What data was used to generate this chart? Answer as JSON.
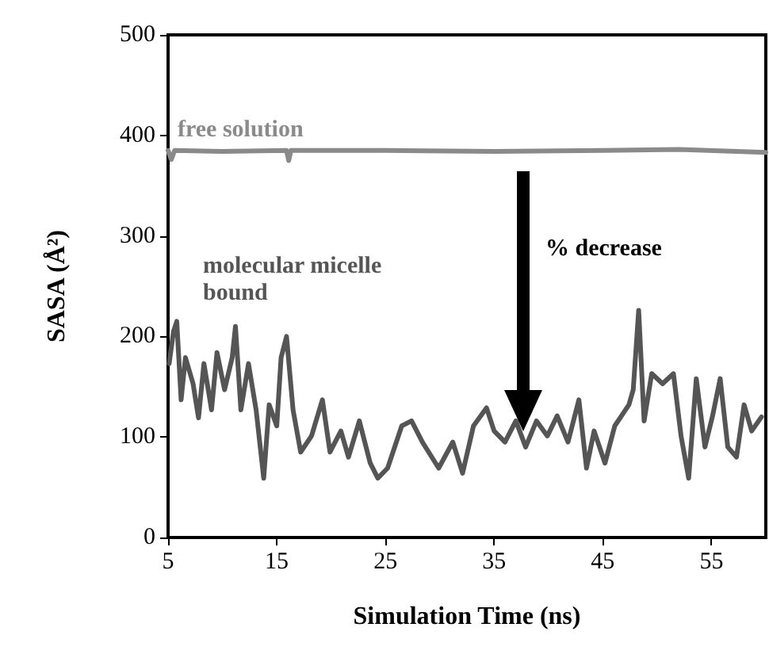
{
  "chart_data": {
    "type": "line",
    "xlabel": "Simulation Time (ns)",
    "ylabel": "SASA (Å²)",
    "xlim": [
      5,
      60
    ],
    "xticks": [
      5,
      15,
      25,
      35,
      45,
      55
    ],
    "ylim": [
      0,
      500
    ],
    "yticks": [
      0,
      100,
      200,
      300,
      400,
      500
    ],
    "grid": false,
    "legend": false,
    "marker": "none",
    "line_style": "solid",
    "annotations": [
      "% decrease"
    ],
    "series": [
      {
        "name": "free solution",
        "color": "#8a8a8a",
        "x": [
          5,
          5.3,
          5.6,
          10,
          15.9,
          16.1,
          16.3,
          25,
          35,
          45,
          52,
          60
        ],
        "values": [
          385,
          376,
          385,
          384,
          385,
          375,
          385,
          385,
          384,
          385,
          386,
          383
        ]
      },
      {
        "name": "molecular micelle bound",
        "color": "#555555",
        "x": [
          5.1,
          5.5,
          5.8,
          6.2,
          6.6,
          7.3,
          7.8,
          8.3,
          9.0,
          9.5,
          10.2,
          10.9,
          11.2,
          11.7,
          12.4,
          13.1,
          13.8,
          14.3,
          15.0,
          15.4,
          15.9,
          16.5,
          17.2,
          18.2,
          19.2,
          19.9,
          20.9,
          21.6,
          22.6,
          23.6,
          24.3,
          25.2,
          26.5,
          27.4,
          28.4,
          29.9,
          31.2,
          32.1,
          33.1,
          34.3,
          35.0,
          36.0,
          37.0,
          37.9,
          38.9,
          39.9,
          40.8,
          41.8,
          42.8,
          43.5,
          44.2,
          45.2,
          46.1,
          47.4,
          47.8,
          48.3,
          48.8,
          49.5,
          50.5,
          51.5,
          52.2,
          52.9,
          53.6,
          54.4,
          55.1,
          55.8,
          56.5,
          57.3,
          58.0,
          58.7,
          59.6
        ],
        "values": [
          173,
          205,
          215,
          137,
          179,
          153,
          119,
          173,
          127,
          184,
          147,
          179,
          210,
          127,
          173,
          127,
          59,
          132,
          111,
          179,
          200,
          127,
          85,
          101,
          137,
          85,
          106,
          80,
          116,
          74,
          59,
          69,
          111,
          116,
          95,
          69,
          95,
          64,
          111,
          129,
          106,
          95,
          116,
          90,
          116,
          101,
          121,
          95,
          137,
          69,
          106,
          74,
          111,
          132,
          147,
          226,
          116,
          163,
          153,
          163,
          101,
          59,
          158,
          90,
          121,
          158,
          90,
          80,
          132,
          106,
          120
        ]
      }
    ]
  }
}
